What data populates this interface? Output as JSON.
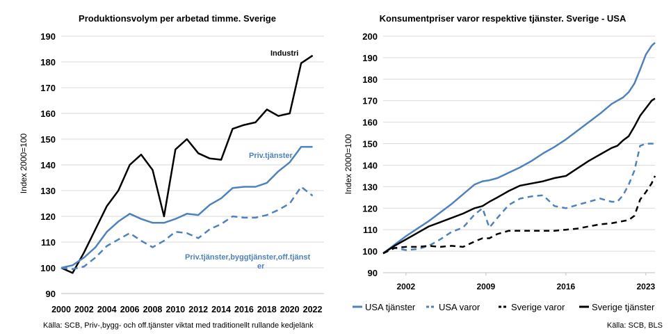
{
  "chart_data": [
    {
      "type": "line",
      "title": "Produktionsvolym per arbetad timme. Sverige",
      "ylabel": "Index 2000=100",
      "xlabel": "",
      "ylim": [
        90,
        190
      ],
      "yticks": [
        90,
        100,
        110,
        120,
        130,
        140,
        150,
        160,
        170,
        180,
        190
      ],
      "xlim": [
        2000,
        2023
      ],
      "xticks": [
        2000,
        2002,
        2004,
        2006,
        2008,
        2010,
        2012,
        2014,
        2016,
        2018,
        2020,
        2022
      ],
      "grid": true,
      "x": [
        2000,
        2001,
        2002,
        2003,
        2004,
        2005,
        2006,
        2007,
        2008,
        2009,
        2010,
        2011,
        2012,
        2013,
        2014,
        2015,
        2016,
        2017,
        2018,
        2019,
        2020,
        2021,
        2022,
        2023
      ],
      "series": [
        {
          "name": "Industri",
          "color": "#000000",
          "dash": "solid",
          "values": [
            100,
            98,
            106,
            115,
            124,
            130,
            140,
            144,
            138,
            120,
            146,
            150,
            144.5,
            142.5,
            142,
            154,
            155.5,
            156.5,
            161.5,
            159,
            160,
            179.5,
            182.5,
            null
          ]
        },
        {
          "name": "Priv.tjänster",
          "color": "#4f81bd",
          "dash": "solid",
          "values": [
            100,
            101,
            104,
            108,
            114,
            118,
            121,
            119,
            117.5,
            117.5,
            119,
            121,
            120.5,
            124.5,
            127,
            131,
            131.5,
            131.5,
            133,
            137.5,
            141,
            147,
            147,
            null
          ]
        },
        {
          "name": "Priv.tjänster,byggtjänster,off.tjänster",
          "color": "#4f81bd",
          "dash": "dashed",
          "values": [
            100,
            99.5,
            100.5,
            104,
            108.5,
            111,
            113.5,
            110.5,
            108,
            110.5,
            114,
            113.5,
            111.5,
            115,
            117,
            120,
            119.5,
            119.5,
            120.5,
            122.5,
            125,
            131.5,
            128,
            null
          ]
        }
      ],
      "labels": {
        "industri": "Industri",
        "priv": "Priv.tjänster",
        "privbygg1": "Priv.tjänster,byggtjänster,off.tjänst",
        "privbygg2": "er"
      },
      "source": "Källa: SCB, Priv-,bygg- och off.tjänster viktat med traditionellt rullande kedjelänk"
    },
    {
      "type": "line",
      "title": "Konsumentpriser varor respektive tjänster. Sverige - USA",
      "ylabel": "Index 2000=100",
      "xlabel": "",
      "ylim": [
        90,
        200
      ],
      "yticks": [
        90,
        100,
        110,
        120,
        130,
        140,
        150,
        160,
        170,
        180,
        190,
        200
      ],
      "xlim": [
        2000,
        2023.8
      ],
      "xticks": [
        2002,
        2009,
        2016,
        2023
      ],
      "grid": true,
      "legend_position": "bottom",
      "x": [
        2000,
        2001,
        2002,
        2003,
        2004,
        2005,
        2006,
        2007,
        2008,
        2008.7,
        2009.3,
        2010,
        2011,
        2012,
        2013,
        2014,
        2015,
        2016,
        2017,
        2018,
        2019,
        2020,
        2020.5,
        2021,
        2021.5,
        2022,
        2022.5,
        2023,
        2023.5,
        2023.8
      ],
      "series": [
        {
          "name": "USA tjänster",
          "color": "#4f81bd",
          "dash": "solid",
          "values": [
            99,
            103,
            107,
            110.5,
            114,
            118,
            122,
            126.5,
            131,
            132.5,
            133,
            134,
            136.5,
            139,
            142,
            145.5,
            148.5,
            152,
            156,
            160,
            164,
            168.5,
            170,
            171.5,
            174,
            178,
            184.5,
            191.5,
            195.5,
            197
          ]
        },
        {
          "name": "USA varor",
          "color": "#4f81bd",
          "dash": "dashed",
          "values": [
            99,
            101.5,
            100.5,
            101,
            102.5,
            105.5,
            109,
            111,
            117,
            120,
            111,
            115.5,
            121.5,
            124.5,
            125.5,
            126,
            121,
            120,
            121.5,
            123,
            124.5,
            123,
            123,
            126,
            131,
            137.5,
            149,
            150,
            150,
            150
          ]
        },
        {
          "name": "Sverige varor",
          "color": "#000000",
          "dash": "dashed",
          "values": [
            99,
            101.5,
            102,
            102,
            102.5,
            102,
            102.5,
            102,
            104.5,
            106,
            106,
            108,
            109.5,
            109.5,
            109.5,
            109.5,
            109.5,
            110,
            110.5,
            111.5,
            112.5,
            113,
            113.5,
            114,
            114.5,
            116.5,
            124,
            127.5,
            131.5,
            135
          ]
        },
        {
          "name": "Sverige tjänster",
          "color": "#000000",
          "dash": "solid",
          "values": [
            99,
            102.5,
            105.5,
            108.5,
            111.5,
            113.5,
            115.5,
            117.5,
            120,
            121,
            123,
            125,
            128,
            130.5,
            131.5,
            132.5,
            134,
            135,
            138.5,
            142,
            145,
            148,
            149,
            151.5,
            153.5,
            158,
            163,
            166.5,
            170,
            171
          ]
        }
      ],
      "source": "Källa: SCB, BLS"
    }
  ]
}
